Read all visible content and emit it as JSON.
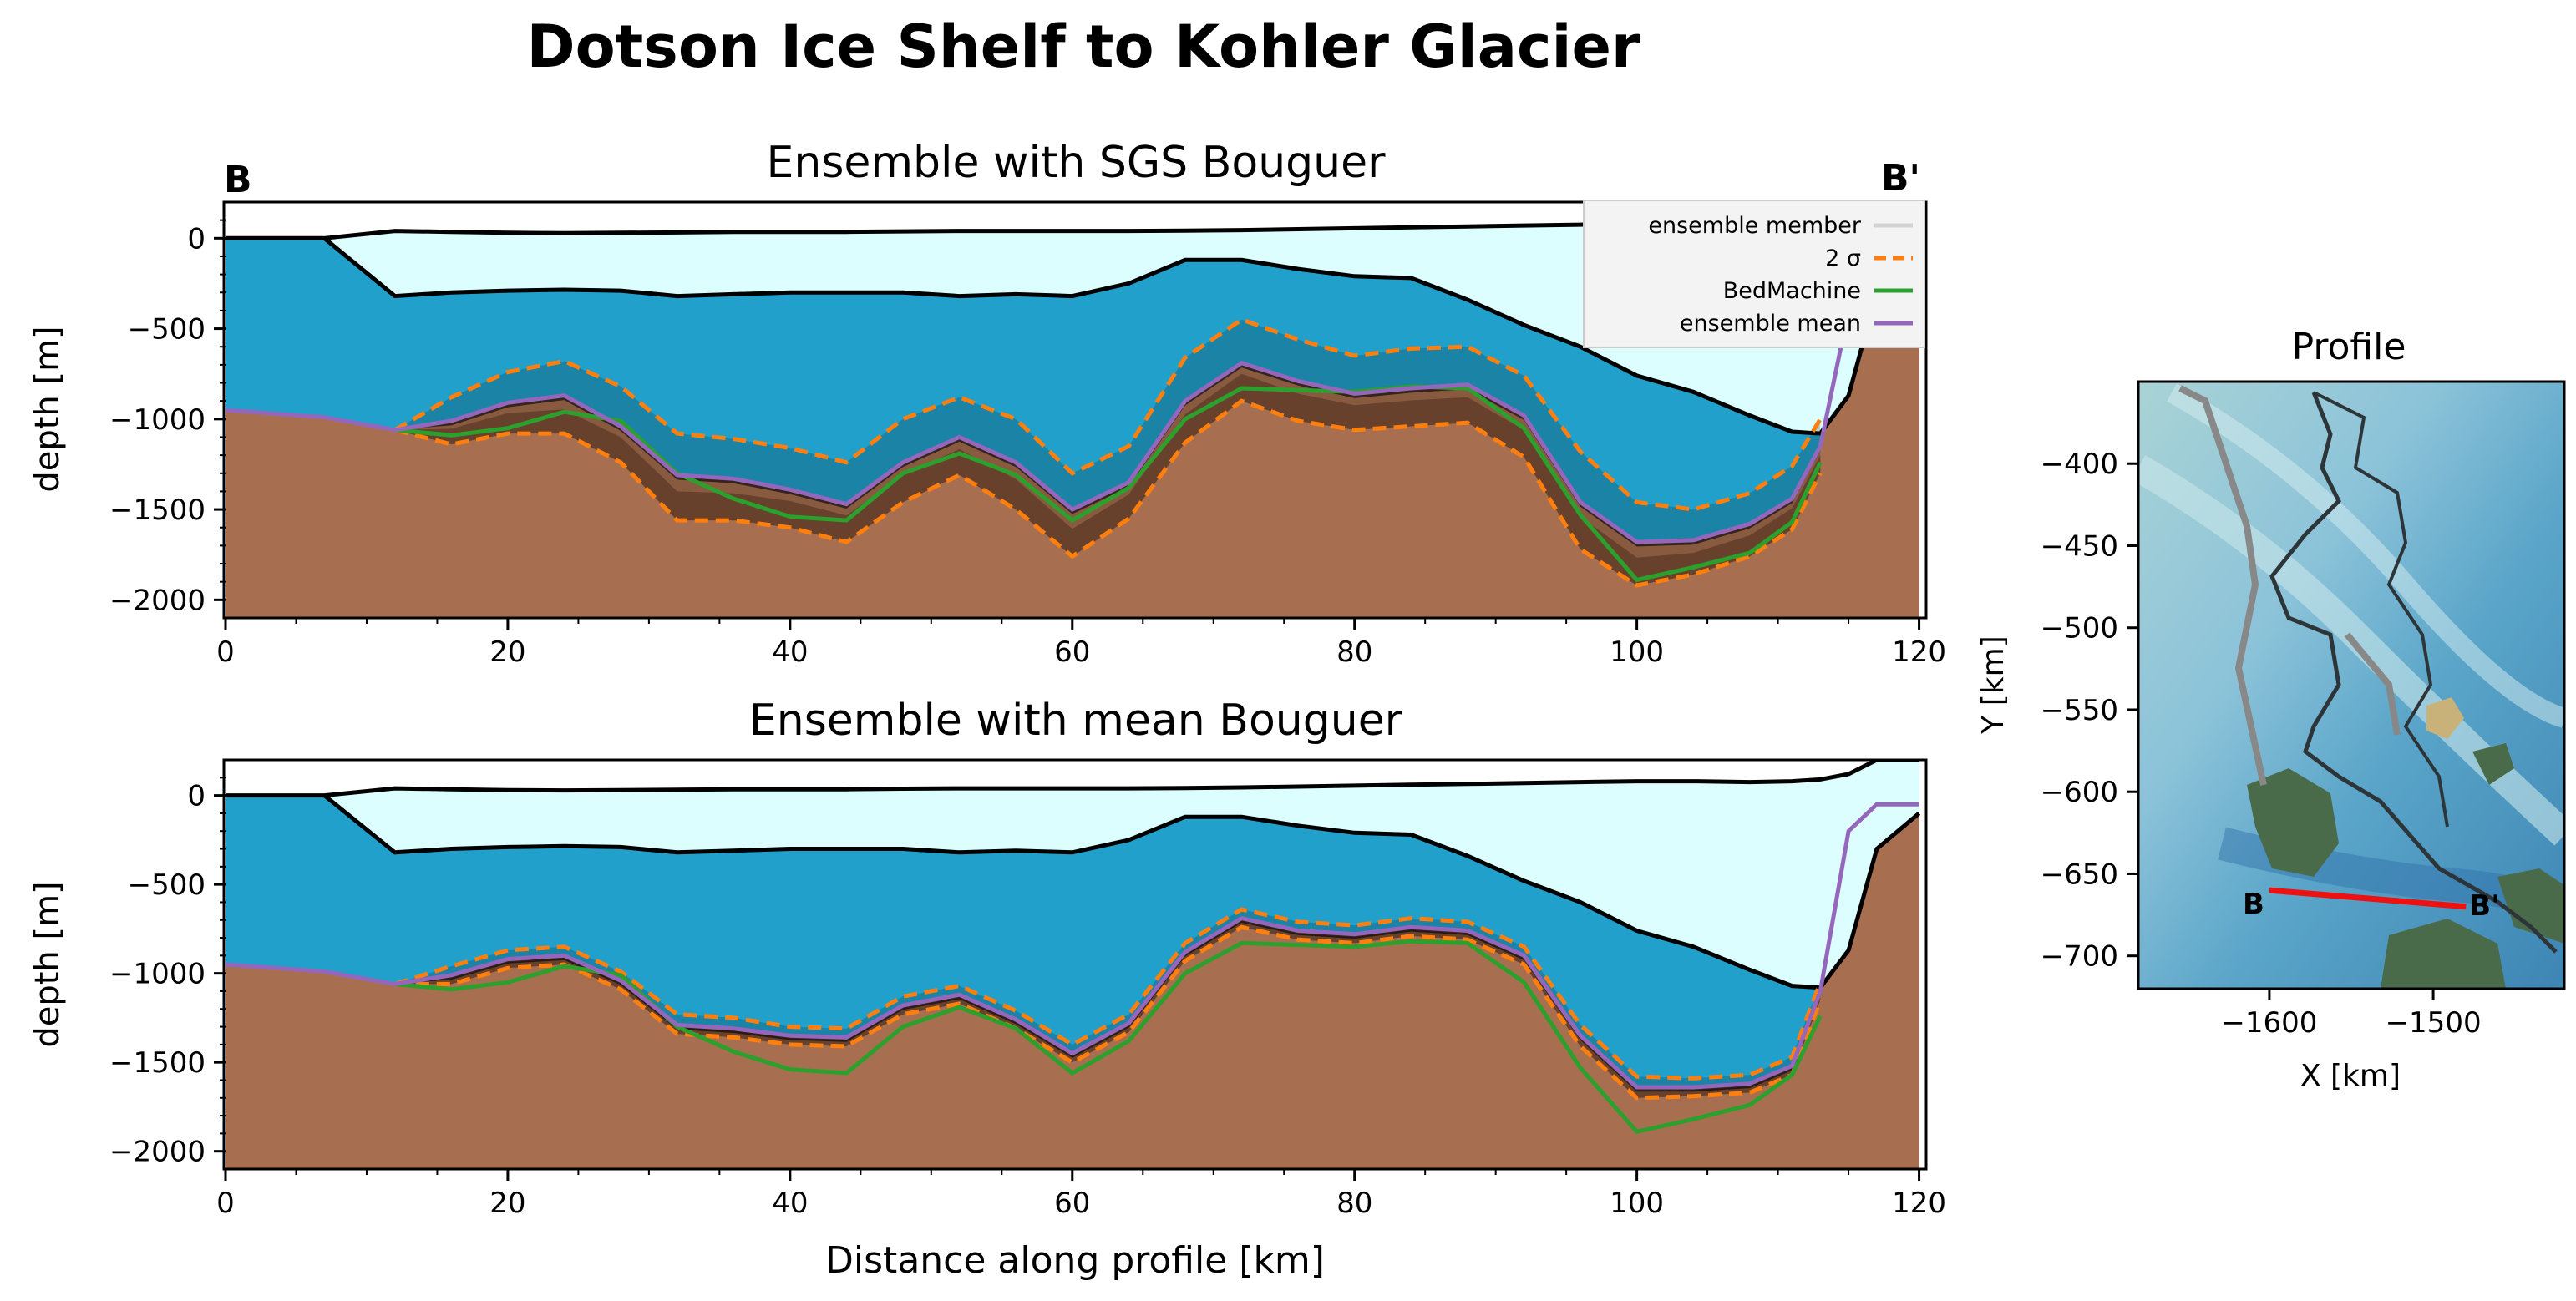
{
  "title": "Dotson Ice Shelf to Kohler Glacier",
  "colors": {
    "water": "#21a0cb",
    "ice": "#dcfeff",
    "rock": "#a76f50",
    "sigma": "#ff7f0e",
    "bedmachine": "#2ca02c",
    "mean": "#9467bd",
    "member": "#d3d3d3",
    "profile_line": "#ee1111"
  },
  "chart_data": [
    {
      "type": "line",
      "title": "Ensemble with SGS Bouguer",
      "xlabel": "",
      "ylabel": "depth [m]",
      "xlim": [
        0,
        120.5
      ],
      "ylim": [
        -2100,
        200
      ],
      "xticks": [
        0,
        20,
        40,
        60,
        80,
        100,
        120
      ],
      "yticks": [
        0,
        -500,
        -1000,
        -1500,
        -2000
      ],
      "tick_labels_y": [
        "0",
        "−500",
        "−1000",
        "−1500",
        "−2000"
      ],
      "corner_labels": {
        "left": "B",
        "right": "B'"
      },
      "grid": false,
      "legend": {
        "placement": "top-right",
        "entries": [
          "ensemble member",
          "2 σ",
          "BedMachine",
          "ensemble mean"
        ]
      },
      "x": [
        0,
        7,
        12,
        16,
        20,
        24,
        28,
        32,
        36,
        40,
        44,
        48,
        52,
        56,
        60,
        64,
        68,
        72,
        76,
        80,
        84,
        88,
        92,
        96,
        100,
        104,
        108,
        111,
        113,
        115,
        117,
        120
      ],
      "surface": [
        0,
        0,
        40,
        35,
        30,
        28,
        30,
        32,
        35,
        35,
        35,
        38,
        40,
        40,
        40,
        40,
        42,
        45,
        50,
        55,
        60,
        65,
        70,
        75,
        80,
        80,
        75,
        80,
        90,
        60,
        60,
        60
      ],
      "ice_base": [
        0,
        0,
        -320,
        -300,
        -290,
        -285,
        -290,
        -320,
        -310,
        -300,
        -300,
        -300,
        -320,
        -310,
        -320,
        -250,
        -120,
        -120,
        -170,
        -210,
        -220,
        -340,
        -480,
        -600,
        -760,
        -850,
        -980,
        -1070,
        -1080,
        -870,
        -300,
        -200
      ],
      "series": [
        {
          "name": "ensemble mean",
          "values": [
            -950,
            -990,
            -1060,
            -1010,
            -910,
            -870,
            -1040,
            -1310,
            -1330,
            -1390,
            -1470,
            -1240,
            -1100,
            -1240,
            -1500,
            -1350,
            -900,
            -690,
            -790,
            -860,
            -830,
            -810,
            -980,
            -1460,
            -1680,
            -1670,
            -1580,
            -1440,
            -1150,
            -400,
            -300,
            -300
          ]
        },
        {
          "name": "BedMachine",
          "values": [
            -950,
            -990,
            -1060,
            -1090,
            -1050,
            -960,
            -1010,
            -1300,
            -1440,
            -1540,
            -1560,
            -1300,
            -1190,
            -1310,
            -1560,
            -1380,
            -1000,
            -830,
            -840,
            -850,
            -820,
            -830,
            -1050,
            -1530,
            -1890,
            -1820,
            -1740,
            -1570,
            -1240,
            -400,
            -300,
            -300
          ]
        },
        {
          "name": "2 σ upper",
          "values": [
            -950,
            -990,
            -1060,
            -880,
            -740,
            -680,
            -820,
            -1080,
            -1110,
            -1160,
            -1240,
            -1000,
            -880,
            -1000,
            -1300,
            -1150,
            -660,
            -450,
            -560,
            -650,
            -610,
            -600,
            -760,
            -1180,
            -1460,
            -1500,
            -1410,
            -1260,
            -1000,
            -400,
            -300,
            -300
          ]
        },
        {
          "name": "2 σ lower",
          "values": [
            -950,
            -990,
            -1060,
            -1140,
            -1080,
            -1080,
            -1240,
            -1560,
            -1560,
            -1600,
            -1680,
            -1460,
            -1310,
            -1500,
            -1760,
            -1550,
            -1130,
            -900,
            -1010,
            -1060,
            -1040,
            -1020,
            -1210,
            -1720,
            -1920,
            -1860,
            -1760,
            -1610,
            -1300,
            -400,
            -300,
            -300
          ]
        }
      ]
    },
    {
      "type": "line",
      "title": "Ensemble with mean Bouguer",
      "xlabel": "Distance along profile [km]",
      "ylabel": "depth [m]",
      "xlim": [
        0,
        120.5
      ],
      "ylim": [
        -2100,
        200
      ],
      "xticks": [
        0,
        20,
        40,
        60,
        80,
        100,
        120
      ],
      "yticks": [
        0,
        -500,
        -1000,
        -1500,
        -2000
      ],
      "tick_labels_y": [
        "0",
        "−500",
        "−1000",
        "−1500",
        "−2000"
      ],
      "grid": false,
      "x": [
        0,
        7,
        12,
        16,
        20,
        24,
        28,
        32,
        36,
        40,
        44,
        48,
        52,
        56,
        60,
        64,
        68,
        72,
        76,
        80,
        84,
        88,
        92,
        96,
        100,
        104,
        108,
        111,
        113,
        115,
        117,
        120
      ],
      "surface": [
        0,
        0,
        40,
        35,
        30,
        28,
        30,
        32,
        35,
        35,
        35,
        38,
        40,
        40,
        40,
        40,
        42,
        45,
        50,
        55,
        60,
        65,
        70,
        75,
        80,
        80,
        75,
        80,
        90,
        120,
        200,
        200
      ],
      "ice_base": [
        0,
        0,
        -320,
        -300,
        -290,
        -285,
        -290,
        -320,
        -310,
        -300,
        -300,
        -300,
        -320,
        -310,
        -320,
        -250,
        -120,
        -120,
        -170,
        -210,
        -220,
        -340,
        -480,
        -600,
        -760,
        -850,
        -980,
        -1070,
        -1080,
        -870,
        -300,
        -100
      ],
      "series": [
        {
          "name": "ensemble mean",
          "values": [
            -950,
            -990,
            -1060,
            -1010,
            -920,
            -900,
            -1040,
            -1290,
            -1310,
            -1350,
            -1360,
            -1180,
            -1120,
            -1260,
            -1450,
            -1280,
            -880,
            -690,
            -760,
            -780,
            -740,
            -760,
            -900,
            -1350,
            -1640,
            -1640,
            -1620,
            -1520,
            -1100,
            -200,
            -50,
            -50
          ]
        },
        {
          "name": "BedMachine",
          "values": [
            -950,
            -990,
            -1060,
            -1090,
            -1050,
            -960,
            -1010,
            -1300,
            -1440,
            -1540,
            -1560,
            -1300,
            -1190,
            -1310,
            -1560,
            -1380,
            -1000,
            -830,
            -840,
            -850,
            -820,
            -830,
            -1050,
            -1530,
            -1890,
            -1820,
            -1740,
            -1570,
            -1240,
            -200,
            -50,
            -50
          ]
        },
        {
          "name": "2 σ upper",
          "values": [
            -950,
            -990,
            -1060,
            -960,
            -870,
            -850,
            -990,
            -1230,
            -1250,
            -1300,
            -1310,
            -1130,
            -1070,
            -1210,
            -1400,
            -1230,
            -830,
            -640,
            -710,
            -730,
            -690,
            -710,
            -850,
            -1290,
            -1580,
            -1590,
            -1570,
            -1470,
            -1050,
            -200,
            -50,
            -50
          ]
        },
        {
          "name": "2 σ lower",
          "values": [
            -950,
            -990,
            -1060,
            -1060,
            -970,
            -950,
            -1090,
            -1340,
            -1360,
            -1400,
            -1410,
            -1230,
            -1170,
            -1310,
            -1500,
            -1330,
            -930,
            -740,
            -810,
            -830,
            -790,
            -810,
            -950,
            -1410,
            -1700,
            -1690,
            -1670,
            -1570,
            -1150,
            -200,
            -50,
            -50
          ]
        }
      ]
    },
    {
      "type": "map",
      "title": "Profile",
      "xlabel": "X [km]",
      "ylabel": "Y [km]",
      "xlim": [
        -1680,
        -1420
      ],
      "ylim": [
        -720,
        -350
      ],
      "xticks": [
        -1600,
        -1500
      ],
      "tick_labels_x": [
        "−1600",
        "−1500"
      ],
      "yticks": [
        -400,
        -450,
        -500,
        -550,
        -600,
        -650,
        -700
      ],
      "tick_labels_y": [
        "−400",
        "−450",
        "−500",
        "−550",
        "−600",
        "−650",
        "−700"
      ],
      "profile": {
        "start_label": "B",
        "end_label": "B'",
        "start": [
          -1600,
          -660
        ],
        "end": [
          -1480,
          -670
        ]
      }
    }
  ]
}
